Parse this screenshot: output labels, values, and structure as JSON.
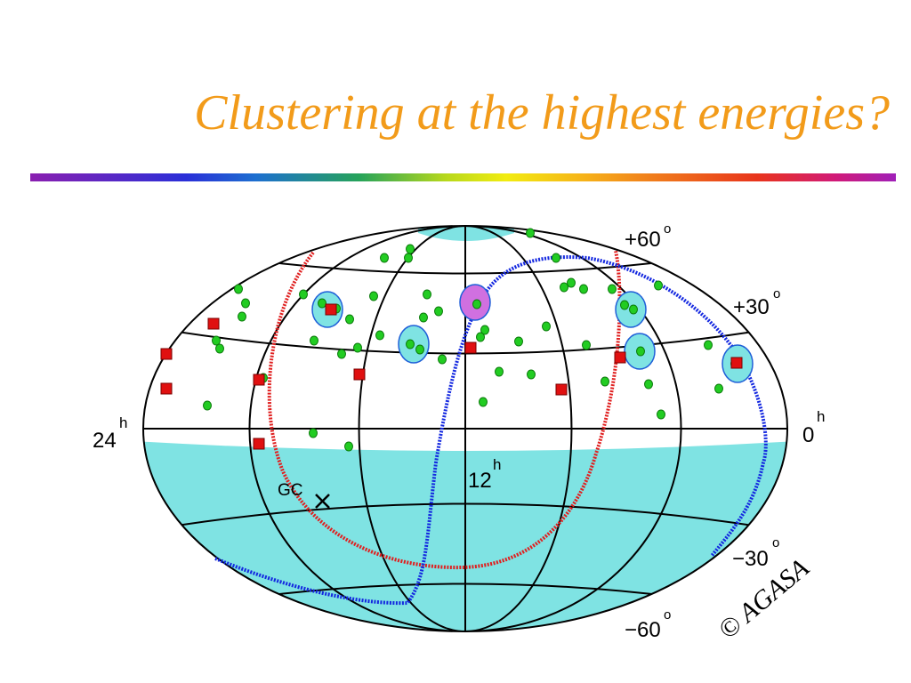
{
  "slide": {
    "title": "Clustering at the highest energies?"
  },
  "labels": {
    "dec_p60": "+60",
    "dec_p30": "+30",
    "dec_0": "0",
    "dec_m30": "−30",
    "dec_m60": "−60",
    "deg": "o",
    "hour": "h",
    "ra_24": "24",
    "ra_12": "12",
    "gc": "GC",
    "copyright": "© AGASA"
  },
  "colors": {
    "title": "#f29b1a",
    "shading": "#7fe3e3",
    "cluster": "#7fe3e3",
    "cluster_special": "#d070e0",
    "low_energy_marker": "#22cc22",
    "high_energy_marker": "#e01010",
    "galactic_plane": "#e02020",
    "supergalactic_plane": "#1428e0",
    "grid": "#000000"
  },
  "icons": {
    "galactic_center": "x-mark-icon"
  }
}
